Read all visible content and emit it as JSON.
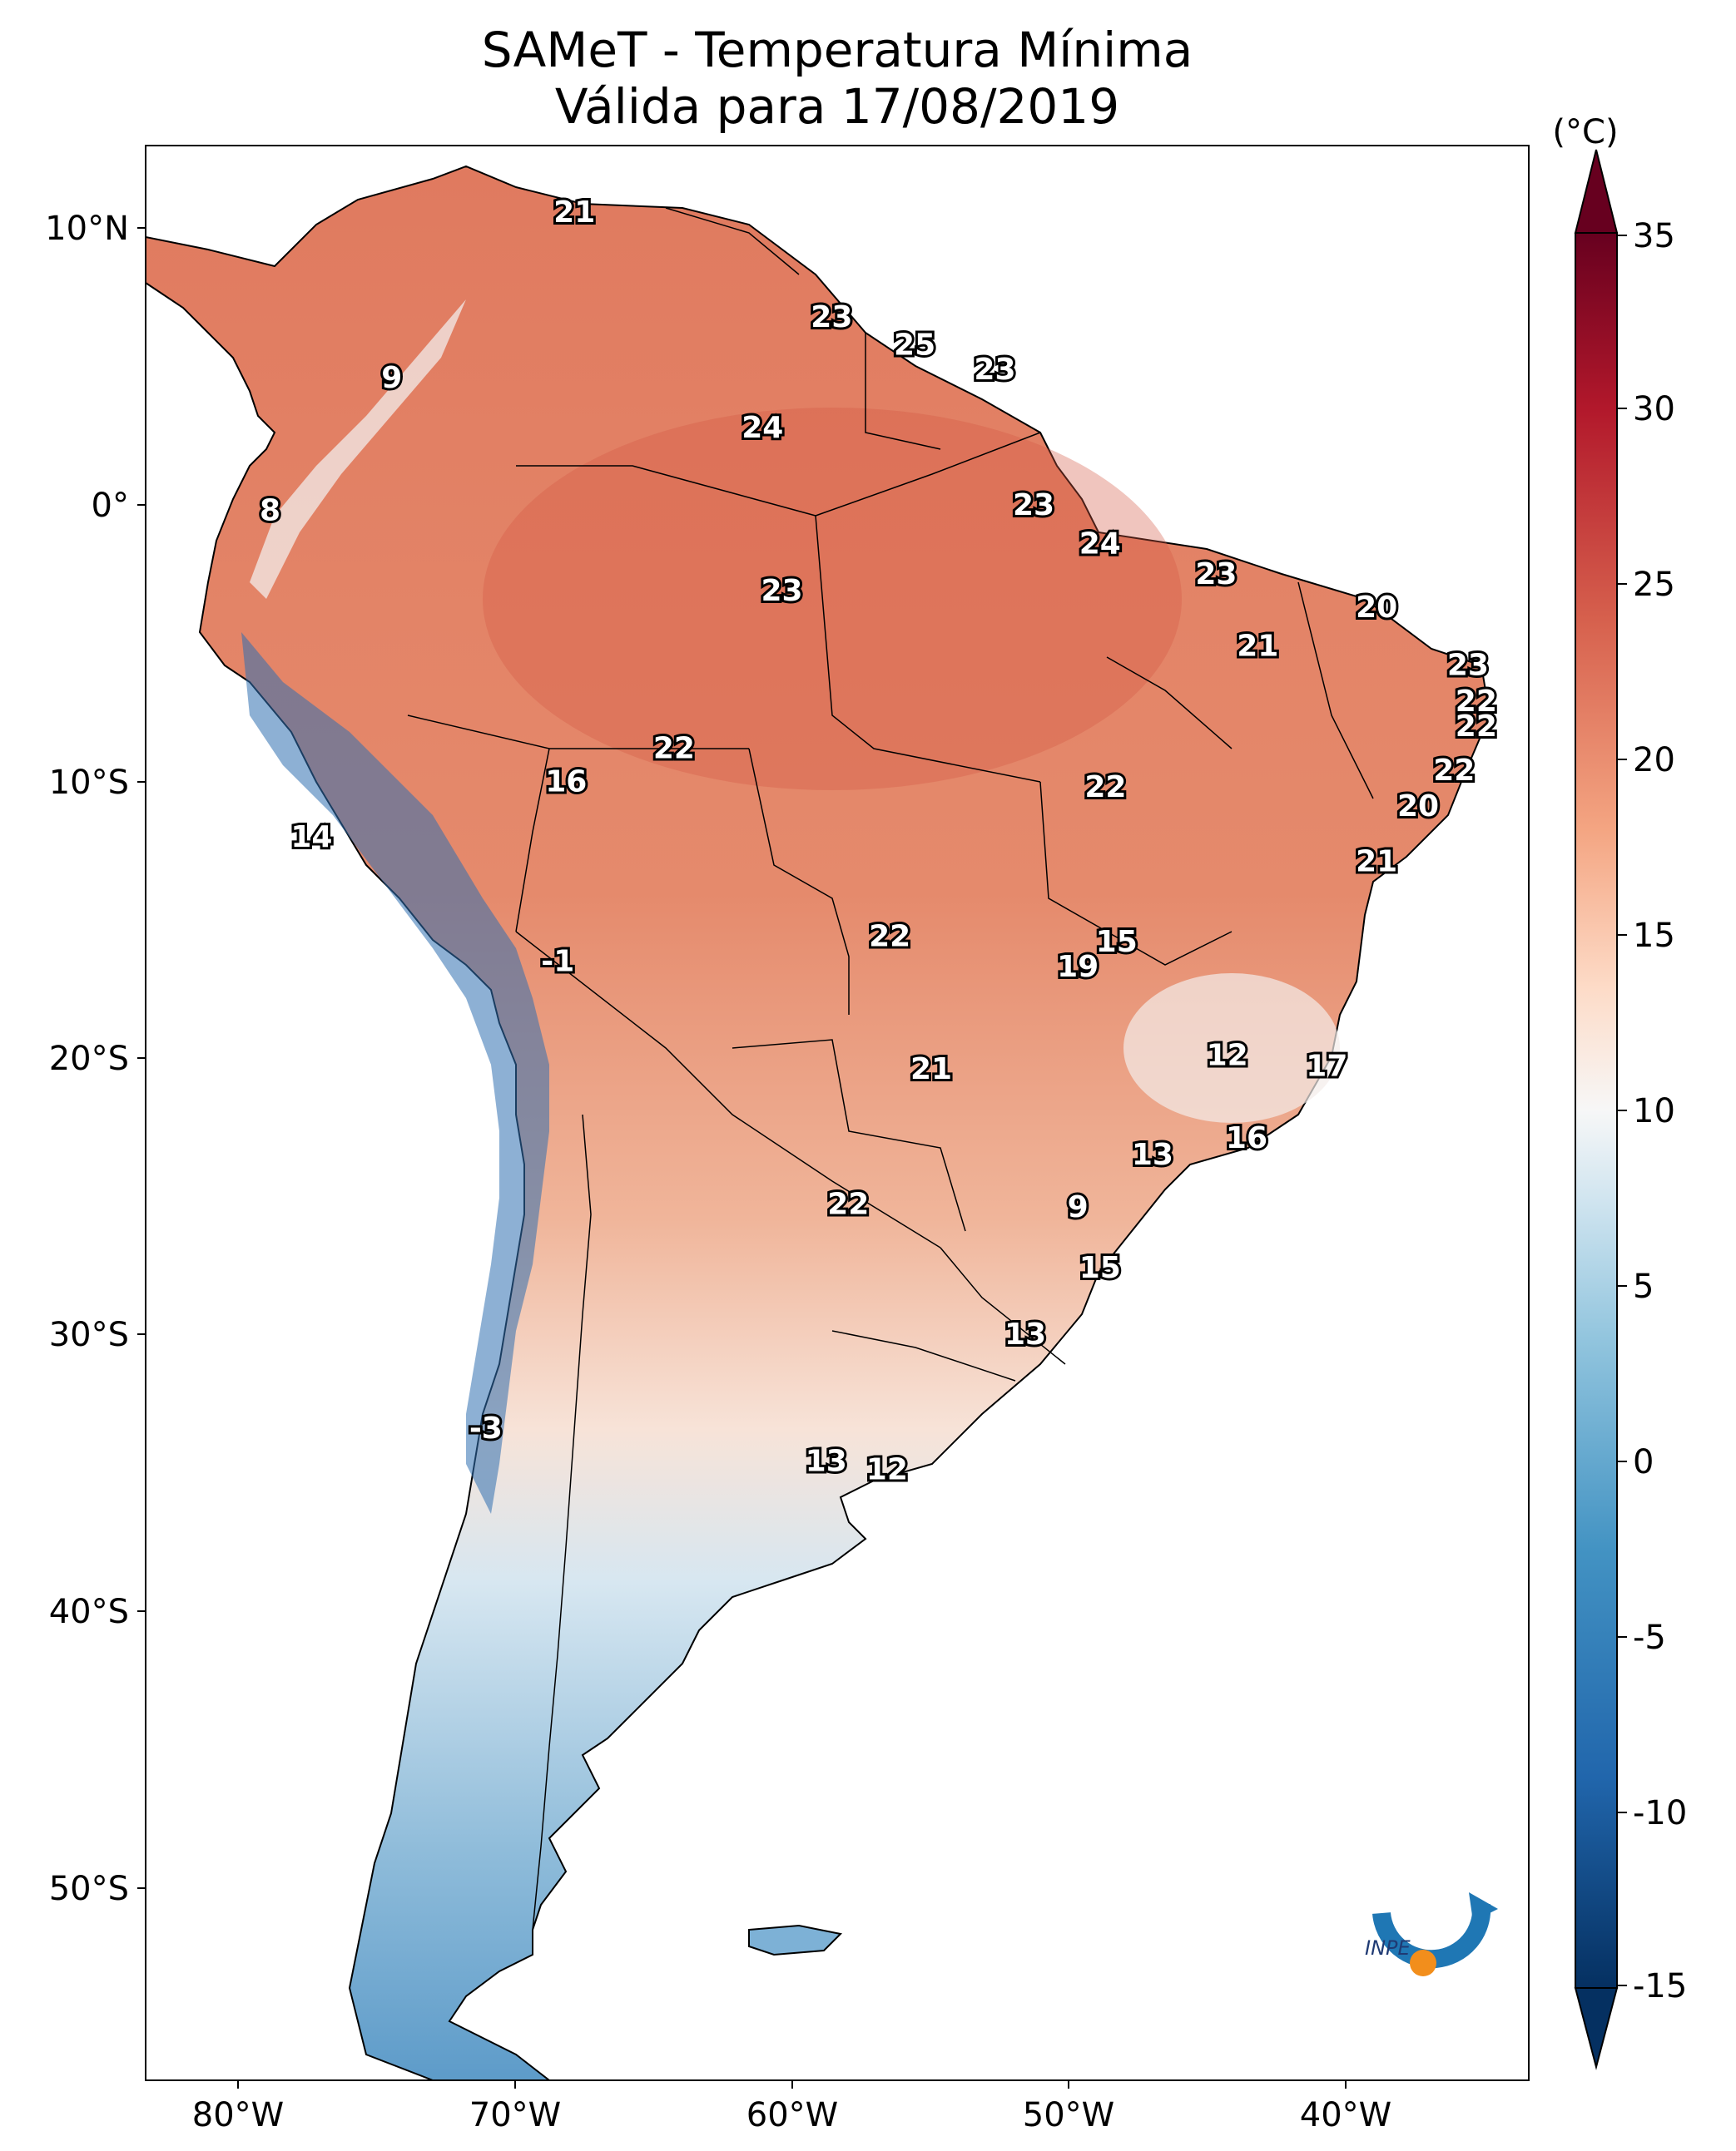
{
  "title": {
    "line1": "SAMeT - Temperatura Mínima",
    "line2": "Válida para 17/08/2019"
  },
  "colorbar": {
    "unit": "(°C)",
    "ticks": [
      "35",
      "30",
      "25",
      "20",
      "15",
      "10",
      "5",
      "0",
      "-5",
      "-10",
      "-15"
    ],
    "range": [
      -15,
      35
    ],
    "colors": {
      "cold": "#053061",
      "mid": "#f7f7f7",
      "warm": "#67001f"
    }
  },
  "axes": {
    "lat_labels": [
      "10°N",
      "0°",
      "10°S",
      "20°S",
      "30°S",
      "40°S",
      "50°S"
    ],
    "lon_labels": [
      "80°W",
      "70°W",
      "60°W",
      "50°W",
      "40°W"
    ]
  },
  "city_values": [
    {
      "value": "21",
      "lon": -67.5,
      "lat": 10.6
    },
    {
      "value": "9",
      "lon": -74.1,
      "lat": 4.6
    },
    {
      "value": "23",
      "lon": -58.2,
      "lat": 6.8
    },
    {
      "value": "25",
      "lon": -55.2,
      "lat": 5.8
    },
    {
      "value": "23",
      "lon": -52.3,
      "lat": 4.9
    },
    {
      "value": "24",
      "lon": -60.7,
      "lat": 2.8
    },
    {
      "value": "8",
      "lon": -78.5,
      "lat": -0.2
    },
    {
      "value": "23",
      "lon": -50.9,
      "lat": 0.0
    },
    {
      "value": "24",
      "lon": -48.5,
      "lat": -1.4
    },
    {
      "value": "23",
      "lon": -60.0,
      "lat": -3.1
    },
    {
      "value": "23",
      "lon": -44.3,
      "lat": -2.5
    },
    {
      "value": "20",
      "lon": -38.5,
      "lat": -3.7
    },
    {
      "value": "21",
      "lon": -42.8,
      "lat": -5.1
    },
    {
      "value": "23",
      "lon": -35.2,
      "lat": -5.8
    },
    {
      "value": "22",
      "lon": -34.9,
      "lat": -7.1
    },
    {
      "value": "22",
      "lon": -34.9,
      "lat": -8.0
    },
    {
      "value": "22",
      "lon": -63.9,
      "lat": -8.8
    },
    {
      "value": "16",
      "lon": -67.8,
      "lat": -10.0
    },
    {
      "value": "22",
      "lon": -48.3,
      "lat": -10.2
    },
    {
      "value": "22",
      "lon": -35.7,
      "lat": -9.6
    },
    {
      "value": "20",
      "lon": -37.0,
      "lat": -10.9
    },
    {
      "value": "14",
      "lon": -77.0,
      "lat": -12.0
    },
    {
      "value": "21",
      "lon": -38.5,
      "lat": -12.9
    },
    {
      "value": "22",
      "lon": -56.1,
      "lat": -15.6
    },
    {
      "value": "15",
      "lon": -47.9,
      "lat": -15.8
    },
    {
      "value": "19",
      "lon": -49.3,
      "lat": -16.7
    },
    {
      "value": "-1",
      "lon": -68.1,
      "lat": -16.5
    },
    {
      "value": "12",
      "lon": -43.9,
      "lat": -19.9
    },
    {
      "value": "17",
      "lon": -40.3,
      "lat": -20.3
    },
    {
      "value": "21",
      "lon": -54.6,
      "lat": -20.4
    },
    {
      "value": "16",
      "lon": -43.2,
      "lat": -22.9
    },
    {
      "value": "13",
      "lon": -46.6,
      "lat": -23.5
    },
    {
      "value": "9",
      "lon": -49.3,
      "lat": -25.4
    },
    {
      "value": "22",
      "lon": -57.6,
      "lat": -25.3
    },
    {
      "value": "15",
      "lon": -48.5,
      "lat": -27.6
    },
    {
      "value": "13",
      "lon": -51.2,
      "lat": -30.0
    },
    {
      "value": "-3",
      "lon": -70.7,
      "lat": -33.4
    },
    {
      "value": "13",
      "lon": -58.4,
      "lat": -34.6
    },
    {
      "value": "12",
      "lon": -56.2,
      "lat": -34.9
    }
  ],
  "logo": {
    "text": "INPE"
  }
}
